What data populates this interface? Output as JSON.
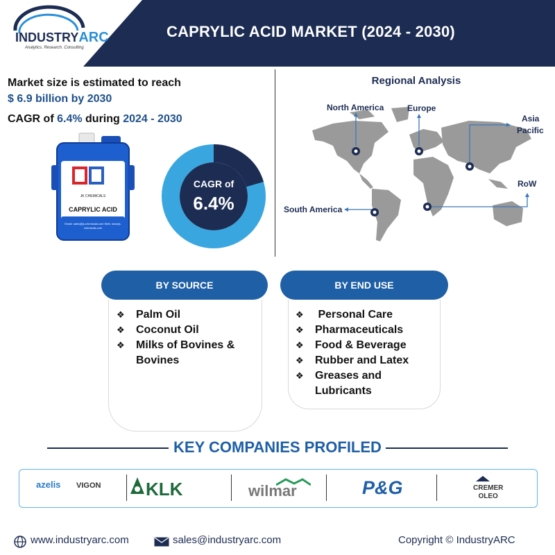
{
  "header": {
    "logo_prefix": "INDUSTRY",
    "logo_suffix": "ARC",
    "logo_tagline": "Analytics. Research. Consulting",
    "title": "CAPRYLIC ACID MARKET (2024 - 2030)",
    "colors": {
      "header_bg": "#1c2c52",
      "accent": "#1e5fa6"
    }
  },
  "market_size": {
    "line1": "Market size is estimated to reach",
    "line2": "$ 6.9 billion by 2030",
    "cagr_prefix": "CAGR of ",
    "cagr_value": "6.4%",
    "cagr_mid": " during ",
    "cagr_period": "2024 - 2030"
  },
  "product": {
    "label_company": "JK CHEMICALS",
    "label_title": "CAPRYLIC ACID",
    "label_mail": "Email: sales@jk-chemicals.com Web: www.jk-chemicals.com"
  },
  "donut": {
    "label": "CAGR of",
    "value": "6.4%",
    "fraction": 0.064
  },
  "regional": {
    "title": "Regional Analysis",
    "regions": {
      "north_america": "North America",
      "europe": "Europe",
      "asia_pacific_1": "Asia",
      "asia_pacific_2": "Pacific",
      "row": "RoW",
      "south_america": "South America"
    }
  },
  "by_source": {
    "header": "BY SOURCE",
    "items": [
      "Palm Oil",
      "Coconut Oil",
      "Milks of Bovines &",
      "Bovines"
    ]
  },
  "by_end_use": {
    "header": "BY END USE",
    "items": [
      " Personal Care",
      "Pharmaceuticals",
      "Food & Beverage",
      "Rubber and Latex",
      "Greases and",
      "Lubricants"
    ]
  },
  "key_companies": {
    "title": "KEY COMPANIES PROFILED",
    "azelis": "azelis",
    "vigon": "VIGON",
    "klk": "KLK",
    "wilmar": "wilmar",
    "pg": "P&G",
    "cremer_1": "CREMER",
    "cremer_2": "OLEO"
  },
  "footer": {
    "website": "www.industryarc.com",
    "email": "sales@industryarc.com",
    "copyright": "Copyright © IndustryARC"
  },
  "icons": {
    "globe": "globe-icon",
    "mail": "mail-icon",
    "bullet": "diamond-bullet-icon",
    "pin": "map-pin-icon"
  }
}
